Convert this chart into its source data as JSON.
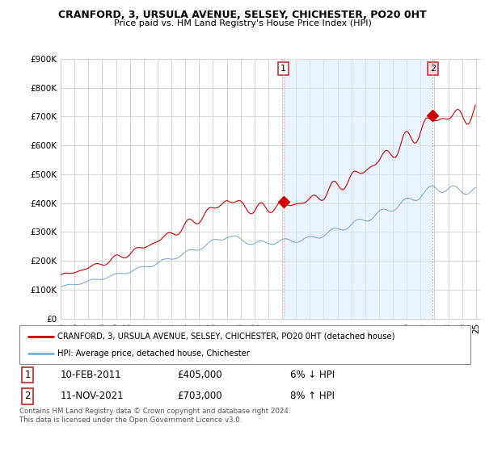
{
  "title": "CRANFORD, 3, URSULA AVENUE, SELSEY, CHICHESTER, PO20 0HT",
  "subtitle": "Price paid vs. HM Land Registry's House Price Index (HPI)",
  "legend_line1": "CRANFORD, 3, URSULA AVENUE, SELSEY, CHICHESTER, PO20 0HT (detached house)",
  "legend_line2": "HPI: Average price, detached house, Chichester",
  "footnote": "Contains HM Land Registry data © Crown copyright and database right 2024.\nThis data is licensed under the Open Government Licence v3.0.",
  "transaction1_date": "10-FEB-2011",
  "transaction1_price": "£405,000",
  "transaction1_hpi": "6% ↓ HPI",
  "transaction2_date": "11-NOV-2021",
  "transaction2_price": "£703,000",
  "transaction2_hpi": "8% ↑ HPI",
  "ylim": [
    0,
    900000
  ],
  "yticks": [
    0,
    100000,
    200000,
    300000,
    400000,
    500000,
    600000,
    700000,
    800000,
    900000
  ],
  "ytick_labels": [
    "£0",
    "£100K",
    "£200K",
    "£300K",
    "£400K",
    "£500K",
    "£600K",
    "£700K",
    "£800K",
    "£900K"
  ],
  "hpi_color": "#7bafd4",
  "price_color": "#cc0000",
  "vline1_color": "#ff9999",
  "vline2_color": "#aaaaaa",
  "shade_color": "#ddeeff",
  "background_color": "#ffffff",
  "grid_color": "#cccccc",
  "transaction1_x": 2011.1,
  "transaction2_x": 2021.87,
  "transaction1_y": 405000,
  "transaction2_y": 703000,
  "xlim_start": 1995,
  "xlim_end": 2025.3
}
